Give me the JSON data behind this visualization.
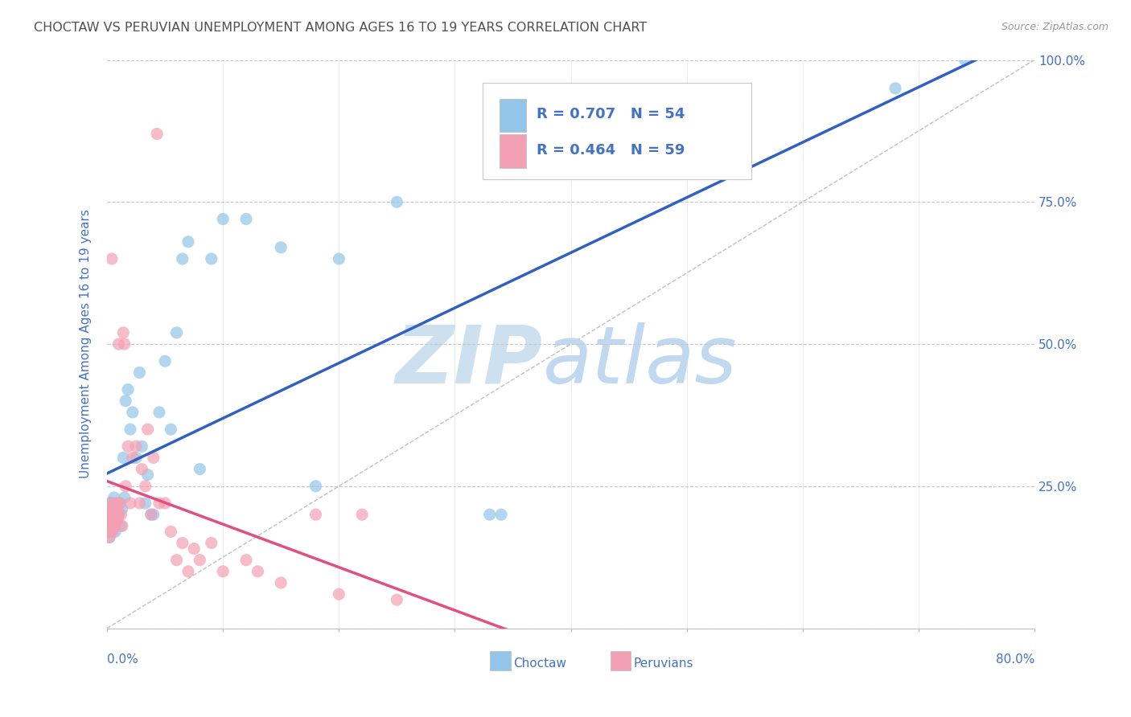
{
  "title": "CHOCTAW VS PERUVIAN UNEMPLOYMENT AMONG AGES 16 TO 19 YEARS CORRELATION CHART",
  "source": "Source: ZipAtlas.com",
  "ylabel": "Unemployment Among Ages 16 to 19 years",
  "watermark_zip": "ZIP",
  "watermark_atlas": "atlas",
  "choctaw_R": 0.707,
  "choctaw_N": 54,
  "peruvian_R": 0.464,
  "peruvian_N": 59,
  "choctaw_color": "#92C5E8",
  "peruvian_color": "#F4A0B4",
  "choctaw_line_color": "#3060C0",
  "peruvian_line_color": "#E05080",
  "diagonal_color": "#C0C0C0",
  "title_color": "#505050",
  "axis_label_color": "#4472C4",
  "background_color": "#FFFFFF",
  "xmin": 0.0,
  "xmax": 0.8,
  "ymin": 0.0,
  "ymax": 1.0,
  "ytick_values": [
    0.0,
    0.25,
    0.5,
    0.75,
    1.0
  ],
  "ytick_labels": [
    "",
    "25.0%",
    "50.0%",
    "75.0%",
    "100.0%"
  ],
  "choctaw_x": [
    0.001,
    0.001,
    0.002,
    0.002,
    0.002,
    0.003,
    0.003,
    0.004,
    0.004,
    0.005,
    0.005,
    0.006,
    0.006,
    0.007,
    0.007,
    0.008,
    0.008,
    0.009,
    0.01,
    0.01,
    0.011,
    0.012,
    0.013,
    0.014,
    0.015,
    0.016,
    0.018,
    0.02,
    0.022,
    0.025,
    0.028,
    0.03,
    0.033,
    0.035,
    0.038,
    0.04,
    0.045,
    0.05,
    0.055,
    0.06,
    0.065,
    0.07,
    0.08,
    0.09,
    0.1,
    0.12,
    0.15,
    0.18,
    0.2,
    0.25,
    0.33,
    0.34,
    0.68,
    0.74
  ],
  "choctaw_y": [
    0.17,
    0.19,
    0.16,
    0.2,
    0.22,
    0.18,
    0.21,
    0.19,
    0.22,
    0.18,
    0.2,
    0.19,
    0.23,
    0.2,
    0.17,
    0.19,
    0.21,
    0.2,
    0.2,
    0.22,
    0.22,
    0.18,
    0.21,
    0.3,
    0.23,
    0.4,
    0.42,
    0.35,
    0.38,
    0.3,
    0.45,
    0.32,
    0.22,
    0.27,
    0.2,
    0.2,
    0.38,
    0.47,
    0.35,
    0.52,
    0.65,
    0.68,
    0.28,
    0.65,
    0.72,
    0.72,
    0.67,
    0.25,
    0.65,
    0.75,
    0.2,
    0.2,
    0.95,
    1.0
  ],
  "peruvian_x": [
    0.001,
    0.001,
    0.001,
    0.002,
    0.002,
    0.002,
    0.003,
    0.003,
    0.003,
    0.004,
    0.004,
    0.004,
    0.005,
    0.005,
    0.005,
    0.006,
    0.006,
    0.007,
    0.007,
    0.008,
    0.008,
    0.009,
    0.009,
    0.01,
    0.01,
    0.011,
    0.012,
    0.013,
    0.014,
    0.015,
    0.016,
    0.018,
    0.02,
    0.022,
    0.025,
    0.028,
    0.03,
    0.033,
    0.035,
    0.038,
    0.04,
    0.043,
    0.045,
    0.05,
    0.055,
    0.06,
    0.065,
    0.07,
    0.075,
    0.08,
    0.09,
    0.1,
    0.12,
    0.13,
    0.15,
    0.18,
    0.2,
    0.22,
    0.25
  ],
  "peruvian_y": [
    0.17,
    0.19,
    0.2,
    0.16,
    0.18,
    0.21,
    0.17,
    0.2,
    0.22,
    0.18,
    0.2,
    0.65,
    0.17,
    0.19,
    0.21,
    0.18,
    0.2,
    0.18,
    0.22,
    0.19,
    0.21,
    0.19,
    0.22,
    0.2,
    0.5,
    0.22,
    0.2,
    0.18,
    0.52,
    0.5,
    0.25,
    0.32,
    0.22,
    0.3,
    0.32,
    0.22,
    0.28,
    0.25,
    0.35,
    0.2,
    0.3,
    0.87,
    0.22,
    0.22,
    0.17,
    0.12,
    0.15,
    0.1,
    0.14,
    0.12,
    0.15,
    0.1,
    0.12,
    0.1,
    0.08,
    0.2,
    0.06,
    0.2,
    0.05
  ]
}
